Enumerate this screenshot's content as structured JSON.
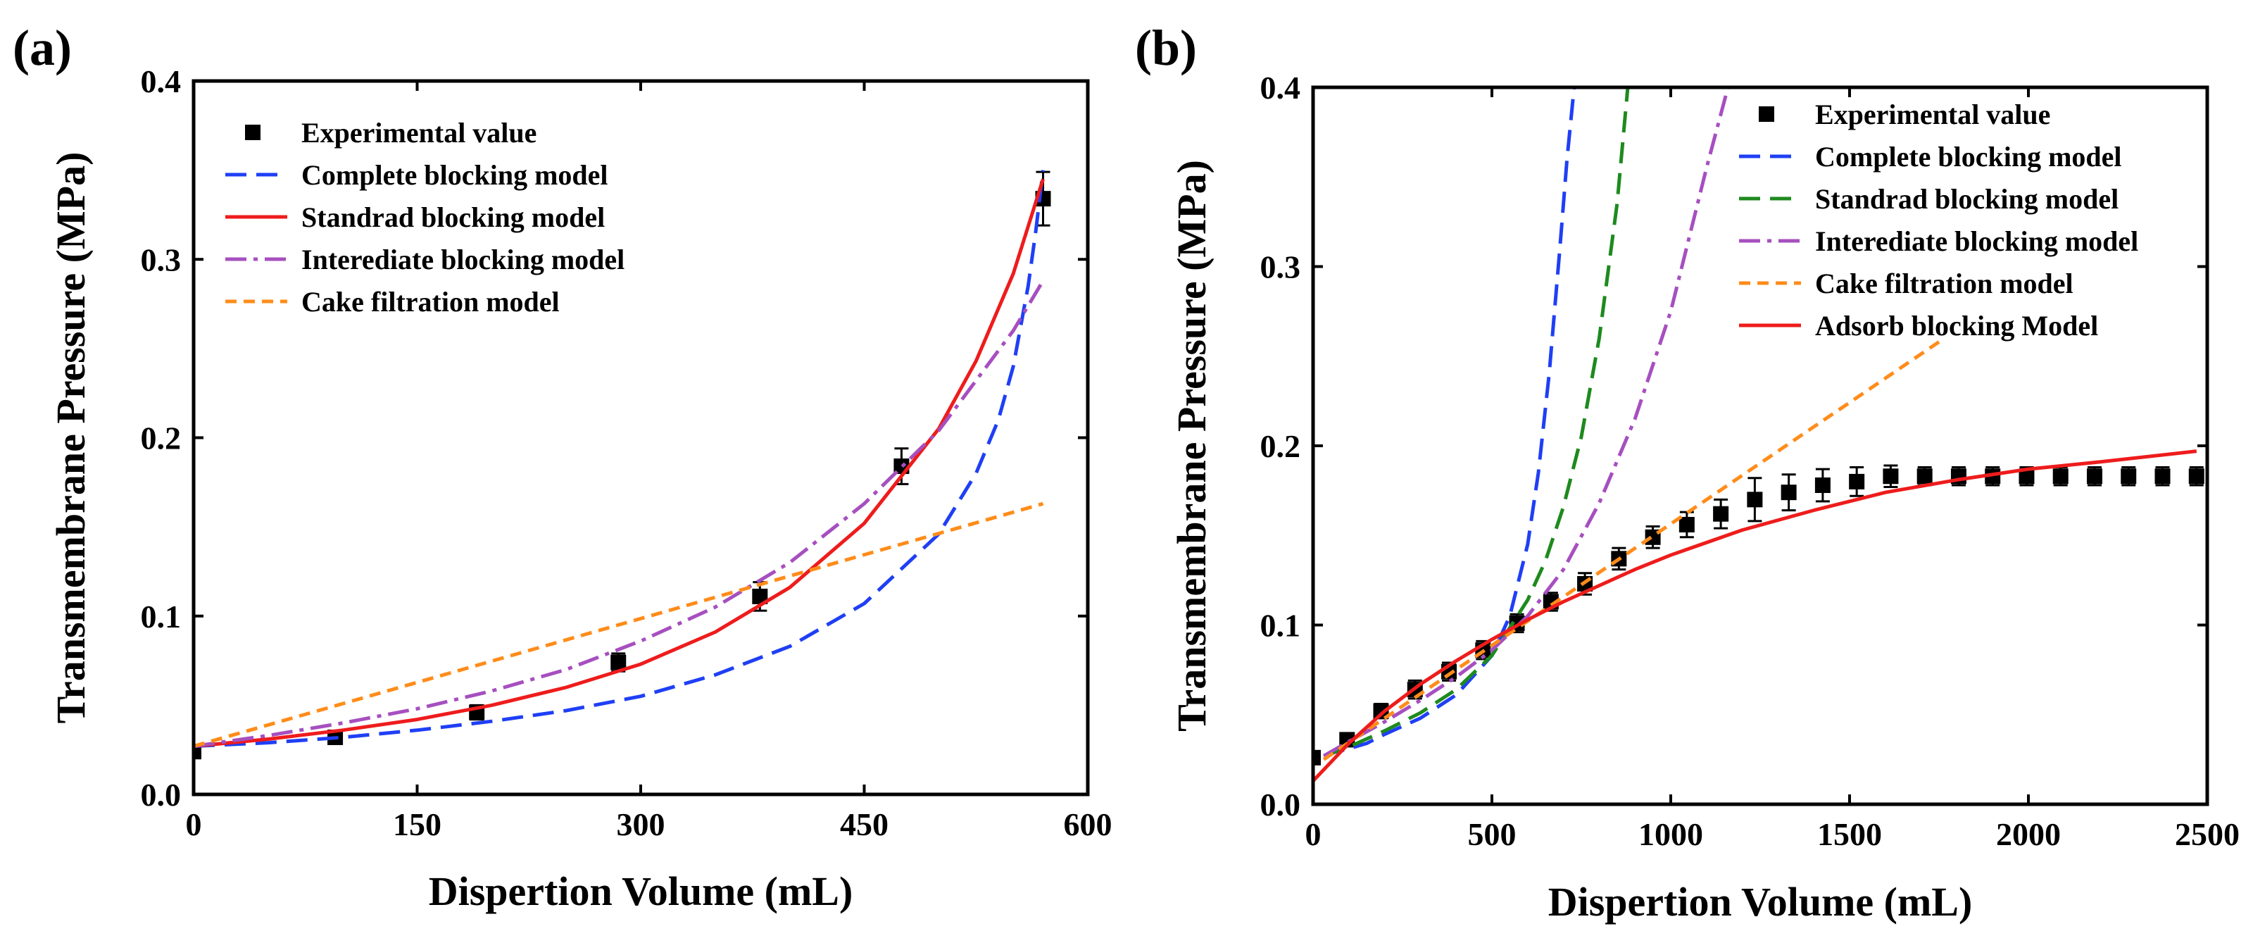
{
  "chart_data": [
    {
      "panel_label": "(a)",
      "type": "line",
      "xlabel": "Dispertion Volume (mL)",
      "ylabel": "Transmembrane Pressure (MPa)",
      "xlim": [
        0,
        600
      ],
      "ylim": [
        0,
        0.4
      ],
      "xticks": [
        0,
        150,
        300,
        450,
        600
      ],
      "yticks": [
        0.0,
        0.1,
        0.2,
        0.3,
        0.4
      ],
      "xtick_labels": [
        "0",
        "150",
        "300",
        "450",
        "600"
      ],
      "ytick_labels": [
        "0.0",
        "0.1",
        "0.2",
        "0.3",
        "0.4"
      ],
      "grid": false,
      "legend_position": "top-left",
      "series": [
        {
          "name": "Experimental value",
          "kind": "marker",
          "color": "#000000",
          "x": [
            0,
            95,
            190,
            285,
            380,
            475,
            570
          ],
          "y": [
            0.024,
            0.032,
            0.046,
            0.074,
            0.111,
            0.184,
            0.334
          ],
          "err": [
            0.002,
            0.002,
            0.004,
            0.005,
            0.008,
            0.01,
            0.015
          ]
        },
        {
          "name": "Complete blocking model",
          "kind": "dash",
          "color": "#1f3ff5",
          "x": [
            0,
            50,
            100,
            150,
            200,
            250,
            300,
            350,
            400,
            450,
            500,
            525,
            540,
            550,
            560,
            565,
            570
          ],
          "y": [
            0.027,
            0.029,
            0.032,
            0.036,
            0.041,
            0.047,
            0.055,
            0.067,
            0.083,
            0.107,
            0.146,
            0.18,
            0.21,
            0.24,
            0.285,
            0.315,
            0.35
          ]
        },
        {
          "name": "Standrad blocking model",
          "kind": "solid",
          "color": "#ee1c1c",
          "x": [
            0,
            50,
            100,
            150,
            200,
            250,
            300,
            350,
            400,
            450,
            500,
            525,
            550,
            570
          ],
          "y": [
            0.027,
            0.031,
            0.036,
            0.042,
            0.05,
            0.06,
            0.073,
            0.091,
            0.116,
            0.152,
            0.205,
            0.243,
            0.292,
            0.345
          ]
        },
        {
          "name": "Interediate blocking model",
          "kind": "dashdot",
          "color": "#a64fbf",
          "x": [
            0,
            50,
            100,
            150,
            200,
            250,
            300,
            350,
            400,
            450,
            500,
            550,
            570
          ],
          "y": [
            0.027,
            0.033,
            0.04,
            0.048,
            0.058,
            0.07,
            0.086,
            0.105,
            0.13,
            0.163,
            0.204,
            0.26,
            0.288
          ]
        },
        {
          "name": "Cake filtration model",
          "kind": "shortdash",
          "color": "#ff8c1a",
          "x": [
            0,
            570
          ],
          "y": [
            0.027,
            0.163
          ]
        }
      ]
    },
    {
      "panel_label": "(b)",
      "type": "line",
      "xlabel": "Dispertion Volume (mL)",
      "ylabel": "Transmembrane  Pressure (MPa)",
      "xlim": [
        0,
        2500
      ],
      "ylim": [
        0,
        0.4
      ],
      "xticks": [
        0,
        500,
        1000,
        1500,
        2000,
        2500
      ],
      "yticks": [
        0.0,
        0.1,
        0.2,
        0.3,
        0.4
      ],
      "xtick_labels": [
        "0",
        "500",
        "1000",
        "1500",
        "2000",
        "2500"
      ],
      "ytick_labels": [
        "0.0",
        "0.1",
        "0.2",
        "0.3",
        "0.4"
      ],
      "grid": false,
      "legend_position": "top-right",
      "series": [
        {
          "name": "Experimental value",
          "kind": "marker",
          "color": "#000000",
          "x": [
            0,
            95,
            190,
            285,
            380,
            475,
            570,
            665,
            760,
            855,
            950,
            1045,
            1140,
            1235,
            1330,
            1425,
            1520,
            1615,
            1710,
            1805,
            1900,
            1995,
            2090,
            2185,
            2280,
            2375,
            2470
          ],
          "y": [
            0.026,
            0.036,
            0.052,
            0.064,
            0.074,
            0.086,
            0.101,
            0.113,
            0.123,
            0.137,
            0.149,
            0.156,
            0.162,
            0.17,
            0.174,
            0.178,
            0.18,
            0.183,
            0.183,
            0.183,
            0.183,
            0.183,
            0.183,
            0.183,
            0.183,
            0.183,
            0.183
          ],
          "err": [
            0.003,
            0.003,
            0.004,
            0.005,
            0.005,
            0.005,
            0.005,
            0.005,
            0.006,
            0.006,
            0.006,
            0.007,
            0.008,
            0.012,
            0.01,
            0.009,
            0.008,
            0.006,
            0.005,
            0.005,
            0.005,
            0.005,
            0.005,
            0.005,
            0.005,
            0.005,
            0.005
          ]
        },
        {
          "name": "Complete blocking model",
          "kind": "dash",
          "color": "#1f3ff5",
          "x": [
            30,
            60,
            100,
            150,
            200,
            300,
            400,
            500,
            550,
            600,
            630,
            660,
            690,
            710,
            730
          ],
          "y": [
            0.027,
            0.029,
            0.031,
            0.034,
            0.039,
            0.048,
            0.061,
            0.083,
            0.105,
            0.145,
            0.185,
            0.24,
            0.31,
            0.36,
            0.4
          ]
        },
        {
          "name": "Standrad blocking model",
          "kind": "dash",
          "color": "#1e8a1e",
          "x": [
            30,
            100,
            200,
            300,
            400,
            500,
            600,
            650,
            700,
            750,
            800,
            850,
            880
          ],
          "y": [
            0.027,
            0.032,
            0.041,
            0.051,
            0.064,
            0.083,
            0.114,
            0.136,
            0.166,
            0.205,
            0.26,
            0.335,
            0.4
          ]
        },
        {
          "name": "Interediate blocking model",
          "kind": "dashdot",
          "color": "#a64fbf",
          "x": [
            30,
            100,
            200,
            300,
            400,
            500,
            600,
            700,
            800,
            900,
            1000,
            1100,
            1160
          ],
          "y": [
            0.027,
            0.035,
            0.046,
            0.058,
            0.071,
            0.086,
            0.105,
            0.131,
            0.168,
            0.215,
            0.275,
            0.355,
            0.4
          ]
        },
        {
          "name": "Cake filtration model",
          "kind": "shortdash",
          "color": "#ff8c1a",
          "x": [
            30,
            1750
          ],
          "y": [
            0.025,
            0.258
          ]
        },
        {
          "name": "Adsorb blocking Model",
          "kind": "solid",
          "color": "#ee1c1c",
          "x": [
            0,
            100,
            200,
            300,
            400,
            500,
            600,
            700,
            800,
            900,
            1000,
            1200,
            1400,
            1600,
            1800,
            2000,
            2200,
            2470
          ],
          "y": [
            0.013,
            0.034,
            0.052,
            0.067,
            0.08,
            0.092,
            0.103,
            0.113,
            0.122,
            0.131,
            0.139,
            0.153,
            0.164,
            0.174,
            0.181,
            0.187,
            0.191,
            0.197
          ]
        }
      ]
    }
  ]
}
